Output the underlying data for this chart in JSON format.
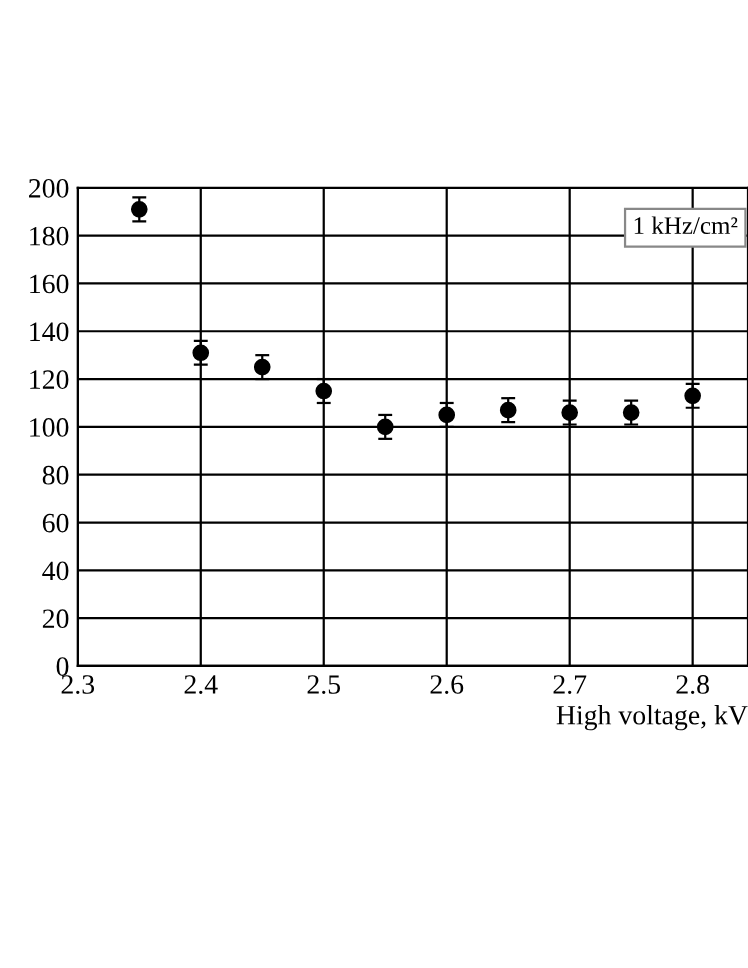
{
  "chart_data": {
    "type": "scatter",
    "xlabel": "High voltage, kV",
    "x": [
      2.35,
      2.4,
      2.45,
      2.5,
      2.55,
      2.6,
      2.65,
      2.7,
      2.75,
      2.8
    ],
    "values": [
      191,
      131,
      125,
      115,
      100,
      105,
      107,
      106,
      106,
      113
    ],
    "errors": [
      5,
      5,
      5,
      5,
      5,
      5,
      5,
      5,
      5,
      5
    ],
    "color": "#000000",
    "marker": "circle",
    "xlim": [
      2.3,
      2.845
    ],
    "xticks": [
      2.3,
      2.4,
      2.5,
      2.6,
      2.7,
      2.8
    ],
    "ylim": [
      0,
      200
    ],
    "yticks": [
      0,
      20,
      40,
      60,
      80,
      100,
      120,
      140,
      160,
      180,
      200
    ],
    "grid": true,
    "annotations": [
      "1 kHz/cm²"
    ]
  }
}
